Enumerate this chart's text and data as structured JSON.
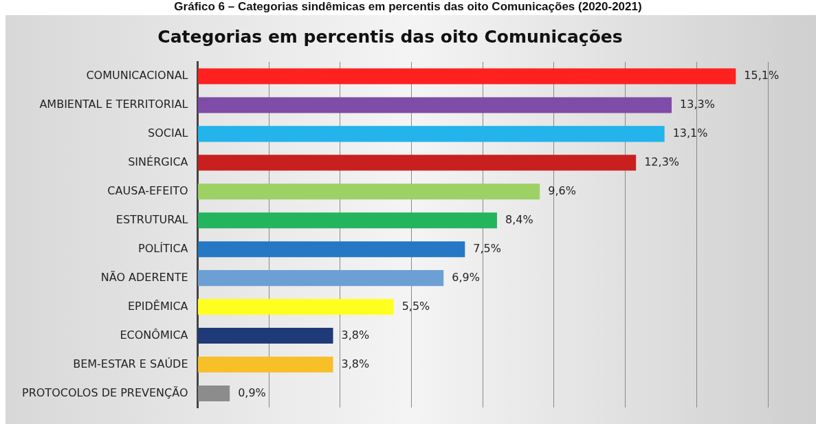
{
  "chart_data": {
    "type": "bar",
    "orientation": "horizontal",
    "title": "Categorias em percentis das oito Comunicações",
    "annotations": [
      "Gráfico 6 – Categorias sindêmicas em percentis das oito Comunicações (2020-2021)"
    ],
    "categories": [
      "COMUNICACIONAL",
      "AMBIENTAL E TERRITORIAL",
      "SOCIAL",
      "SINÉRGICA",
      "CAUSA-EFEITO",
      "ESTRUTURAL",
      "POLÍTICA",
      "NÃO ADERENTE",
      "EPIDÊMICA",
      "ECONÔMICA",
      "BEM-ESTAR E SAÚDE",
      "PROTOCOLOS DE PREVENÇÃO"
    ],
    "values": [
      15.1,
      13.3,
      13.1,
      12.3,
      9.6,
      8.4,
      7.5,
      6.9,
      5.5,
      3.8,
      3.8,
      0.9
    ],
    "value_labels": [
      "15,1%",
      "13,3%",
      "13,1%",
      "12,3%",
      "9,6%",
      "8,4%",
      "7,5%",
      "6,9%",
      "5,5%",
      "3,8%",
      "3,8%",
      "0,9%"
    ],
    "colors": [
      "#ff2020",
      "#7f4ca8",
      "#22b4ea",
      "#c8201e",
      "#9dd164",
      "#22b55d",
      "#2478c4",
      "#6c9fd4",
      "#ffff20",
      "#1f3a78",
      "#f7c028",
      "#8c8c8c"
    ],
    "xlim": [
      0,
      16
    ],
    "xticks": [
      {
        "value": 0,
        "label": null
      },
      {
        "value": 2,
        "label": null
      },
      {
        "value": 4,
        "label": null
      },
      {
        "value": 6,
        "label": null
      },
      {
        "value": 8,
        "label": null
      },
      {
        "value": 10,
        "label": null
      },
      {
        "value": 12,
        "label": null
      },
      {
        "value": 14,
        "label": null
      },
      {
        "value": 16,
        "label": null
      }
    ],
    "tick_labels": "y",
    "grid": "x",
    "legend": false
  }
}
